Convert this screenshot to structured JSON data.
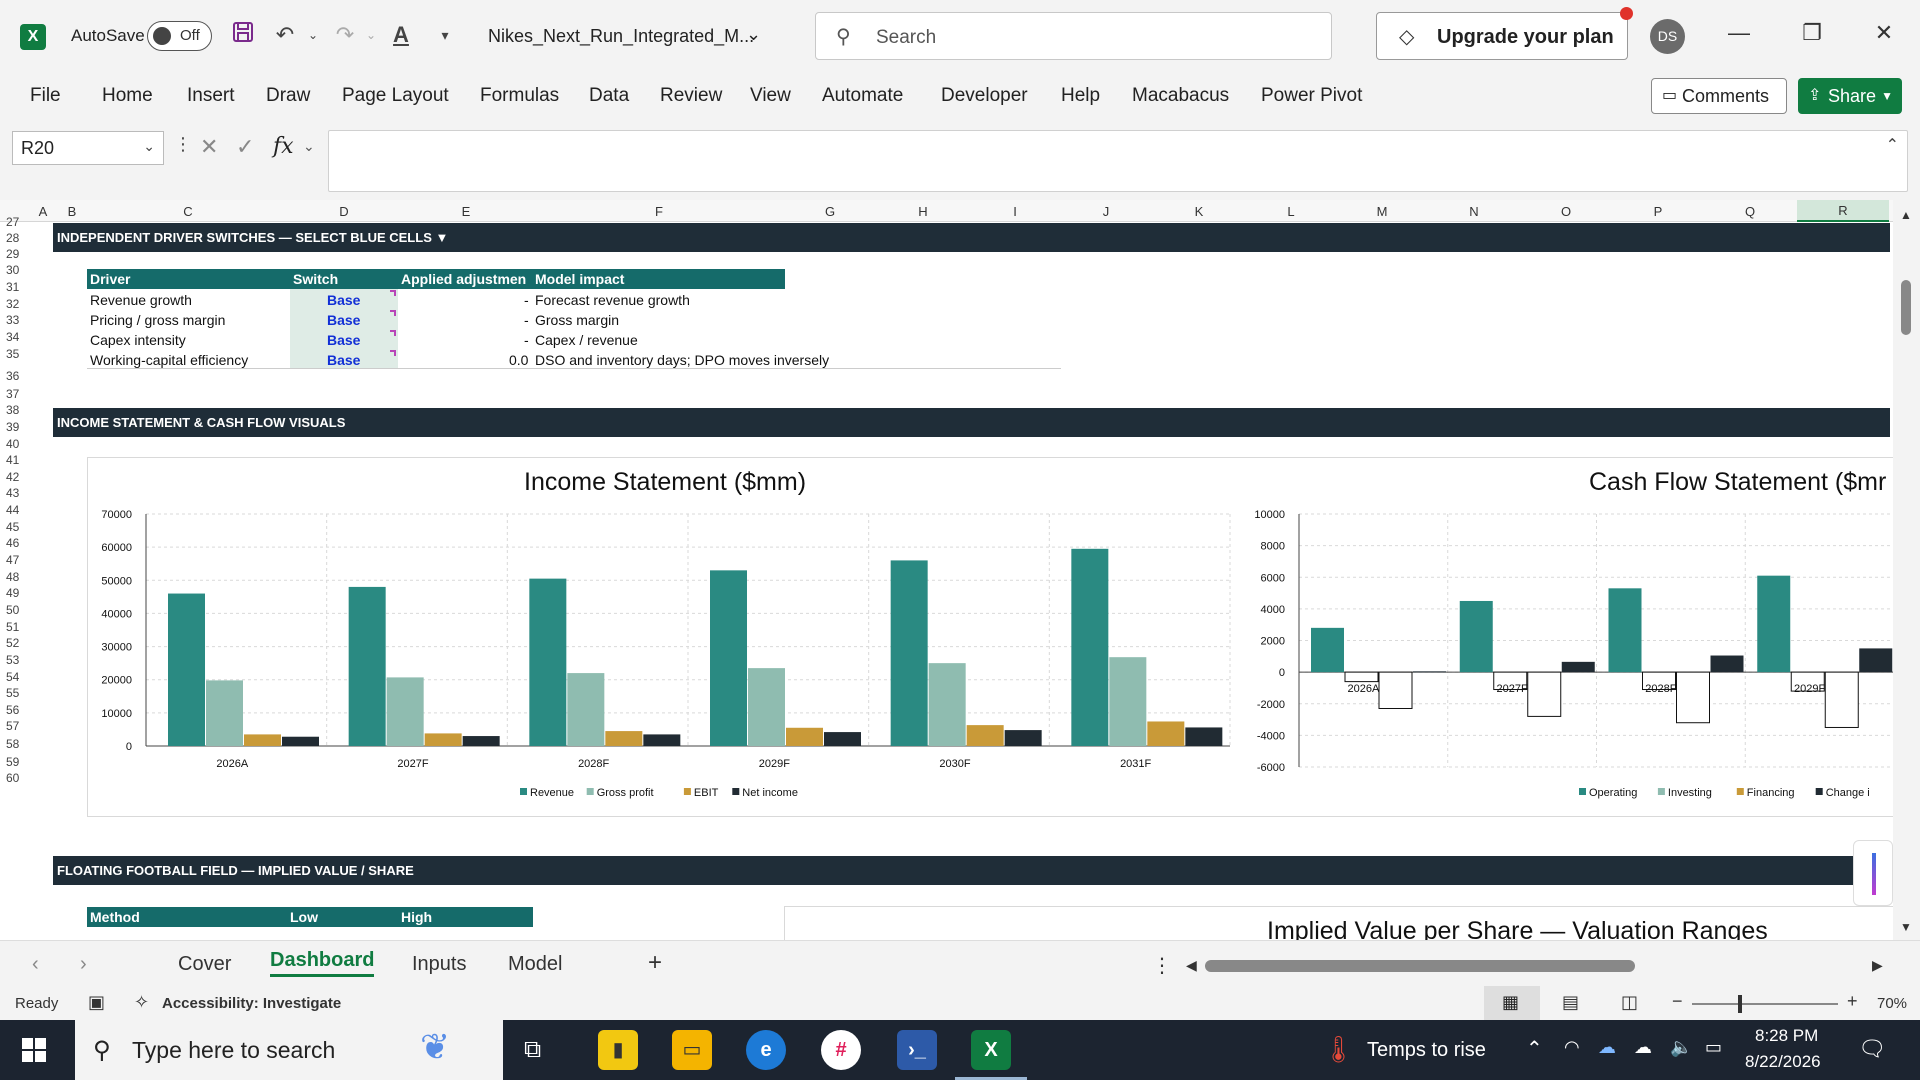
{
  "titlebar": {
    "autosave_label": "AutoSave",
    "autosave_state": "Off",
    "filename": "Nikes_Next_Run_Integrated_M...",
    "search_placeholder": "Search",
    "upgrade_label": "Upgrade your plan",
    "avatar_initials": "DS"
  },
  "ribbon": {
    "tabs": [
      "File",
      "Home",
      "Insert",
      "Draw",
      "Page Layout",
      "Formulas",
      "Data",
      "Review",
      "View",
      "Automate",
      "Developer",
      "Help",
      "Macabacus",
      "Power Pivot"
    ],
    "comments_label": "Comments",
    "share_label": "Share"
  },
  "formula_bar": {
    "name_box": "R20",
    "fx": "fx",
    "value": ""
  },
  "columns": [
    "A",
    "B",
    "C",
    "D",
    "E",
    "F",
    "G",
    "H",
    "I",
    "J",
    "K",
    "L",
    "M",
    "N",
    "O",
    "P",
    "Q",
    "R"
  ],
  "rows": [
    "27",
    "28",
    "29",
    "30",
    "31",
    "32",
    "33",
    "34",
    "35",
    "36",
    "37",
    "38",
    "39",
    "40",
    "41",
    "42",
    "43",
    "44",
    "45",
    "46",
    "47",
    "48",
    "49",
    "50",
    "51",
    "52",
    "53",
    "54",
    "55",
    "56",
    "57",
    "58",
    "59",
    "60"
  ],
  "sections": {
    "drivers": "INDEPENDENT DRIVER SWITCHES — SELECT BLUE CELLS ▼",
    "visuals": "INCOME STATEMENT & CASH FLOW VISUALS",
    "football": "FLOATING FOOTBALL FIELD — IMPLIED VALUE / SHARE"
  },
  "driver_table": {
    "headers": [
      "Driver",
      "Switch",
      "Applied adjustmen",
      "Model impact"
    ],
    "rows": [
      {
        "driver": "Revenue growth",
        "switch": "Base",
        "adj": "-",
        "impact": "Forecast revenue growth"
      },
      {
        "driver": "Pricing / gross margin",
        "switch": "Base",
        "adj": "-",
        "impact": "Gross margin"
      },
      {
        "driver": "Capex intensity",
        "switch": "Base",
        "adj": "-",
        "impact": "Capex / revenue"
      },
      {
        "driver": "Working-capital efficiency",
        "switch": "Base",
        "adj": "0.0",
        "impact": "DSO and inventory days; DPO moves inversely"
      }
    ]
  },
  "football_table": {
    "headers": [
      "Method",
      "Low",
      "High"
    ]
  },
  "chart_data": [
    {
      "type": "bar",
      "title": "Income Statement ($mm)",
      "categories": [
        "2026A",
        "2027F",
        "2028F",
        "2029F",
        "2030F",
        "2031F"
      ],
      "ylim": [
        0,
        70000
      ],
      "yticks": [
        "70000",
        "60000",
        "50000",
        "40000",
        "30000",
        "20000",
        "10000",
        "0"
      ],
      "legend_position": "bottom",
      "series": [
        {
          "name": "Revenue",
          "color": "#2a8a82",
          "values": [
            46000,
            48000,
            50500,
            53000,
            56000,
            59500
          ]
        },
        {
          "name": "Gross profit",
          "color": "#8fbcb0",
          "values": [
            19800,
            20700,
            22000,
            23500,
            25000,
            26800
          ]
        },
        {
          "name": "EBIT",
          "color": "#c99a38",
          "values": [
            3500,
            3800,
            4500,
            5500,
            6300,
            7400
          ]
        },
        {
          "name": "Net income",
          "color": "#212b33",
          "values": [
            2800,
            3000,
            3500,
            4200,
            4800,
            5600
          ]
        }
      ]
    },
    {
      "type": "bar",
      "title": "Cash Flow Statement ($mr",
      "categories": [
        "2026A",
        "2027F",
        "2028F",
        "2029F"
      ],
      "ylim": [
        -6000,
        10000
      ],
      "yticks": [
        "10000",
        "8000",
        "6000",
        "4000",
        "2000",
        "0",
        "-2000",
        "-4000",
        "-6000"
      ],
      "legend_position": "bottom",
      "series": [
        {
          "name": "Operating",
          "color": "#2a8a82",
          "values": [
            2800,
            4500,
            5300,
            6100
          ]
        },
        {
          "name": "Investing",
          "color": "#8fbcb0",
          "values": [
            -600,
            -1100,
            -1100,
            -1200
          ]
        },
        {
          "name": "Financing",
          "color": "#c99a38",
          "values": [
            -2300,
            -2800,
            -3200,
            -3500
          ]
        },
        {
          "name": "Change i",
          "color": "#212b33",
          "values": [
            50,
            650,
            1050,
            1500
          ]
        }
      ]
    }
  ],
  "football_chart_title": "Implied Value per Share — Valuation Ranges",
  "sheet_tabs": [
    "Cover",
    "Dashboard",
    "Inputs",
    "Model"
  ],
  "active_sheet": "Dashboard",
  "status": {
    "ready": "Ready",
    "accessibility": "Accessibility: Investigate",
    "zoom": "70%"
  },
  "taskbar": {
    "search_placeholder": "Type here to search",
    "weather": "Temps to rise",
    "time": "8:28 PM",
    "date": "8/22/2026"
  }
}
